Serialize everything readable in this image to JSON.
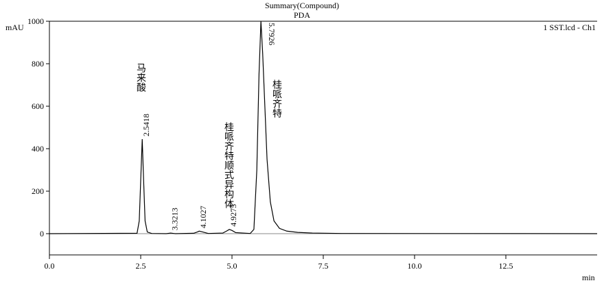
{
  "chart_data": {
    "type": "line",
    "title": "Summary(Compound)",
    "subtitle": "PDA",
    "y_label": "mAU",
    "x_label": "min",
    "x": [
      0,
      2.4,
      2.46,
      2.5,
      2.5418,
      2.58,
      2.62,
      2.68,
      2.8,
      3.2,
      3.3213,
      3.45,
      3.95,
      4.05,
      4.1027,
      4.2,
      4.35,
      4.75,
      4.85,
      4.9275,
      5.0,
      5.1,
      5.5,
      5.6,
      5.68,
      5.74,
      5.7926,
      5.84,
      5.9,
      5.96,
      6.05,
      6.15,
      6.3,
      6.5,
      6.8,
      7.2,
      8.0,
      15
    ],
    "series": [
      {
        "name": "1 SST.lcd - Ch1",
        "color": "#000000",
        "values": [
          0,
          2,
          60,
          250,
          445,
          250,
          60,
          8,
          1,
          0,
          3,
          0,
          2,
          8,
          12,
          8,
          1,
          3,
          12,
          20,
          15,
          5,
          1,
          20,
          300,
          750,
          1000,
          850,
          600,
          350,
          150,
          60,
          25,
          12,
          6,
          3,
          1,
          0
        ]
      }
    ],
    "legend": "upper right",
    "xlim": [
      0,
      15
    ],
    "ylim": [
      -100,
      1000
    ],
    "xticks": [
      {
        "value": 0,
        "label": "0.0"
      },
      {
        "value": 2.5,
        "label": "2.5"
      },
      {
        "value": 5,
        "label": "5.0"
      },
      {
        "value": 7.5,
        "label": "7.5"
      },
      {
        "value": 10,
        "label": "10.0"
      },
      {
        "value": 12.5,
        "label": "12.5"
      }
    ],
    "yticks": [
      0,
      200,
      400,
      600,
      800,
      1000
    ],
    "peak_labels": [
      {
        "value": 2.5418,
        "label": "2.5418"
      },
      {
        "value": 3.3213,
        "label": "3.3213"
      },
      {
        "value": 4.1027,
        "label": "4.1027"
      },
      {
        "value": 4.9275,
        "label": "4.9275"
      },
      {
        "value": 5.7926,
        "label": "5.7926"
      }
    ],
    "compounds": [
      "马来酸",
      "桂哌齐特顺式异构体",
      "桂哌齐特"
    ]
  }
}
